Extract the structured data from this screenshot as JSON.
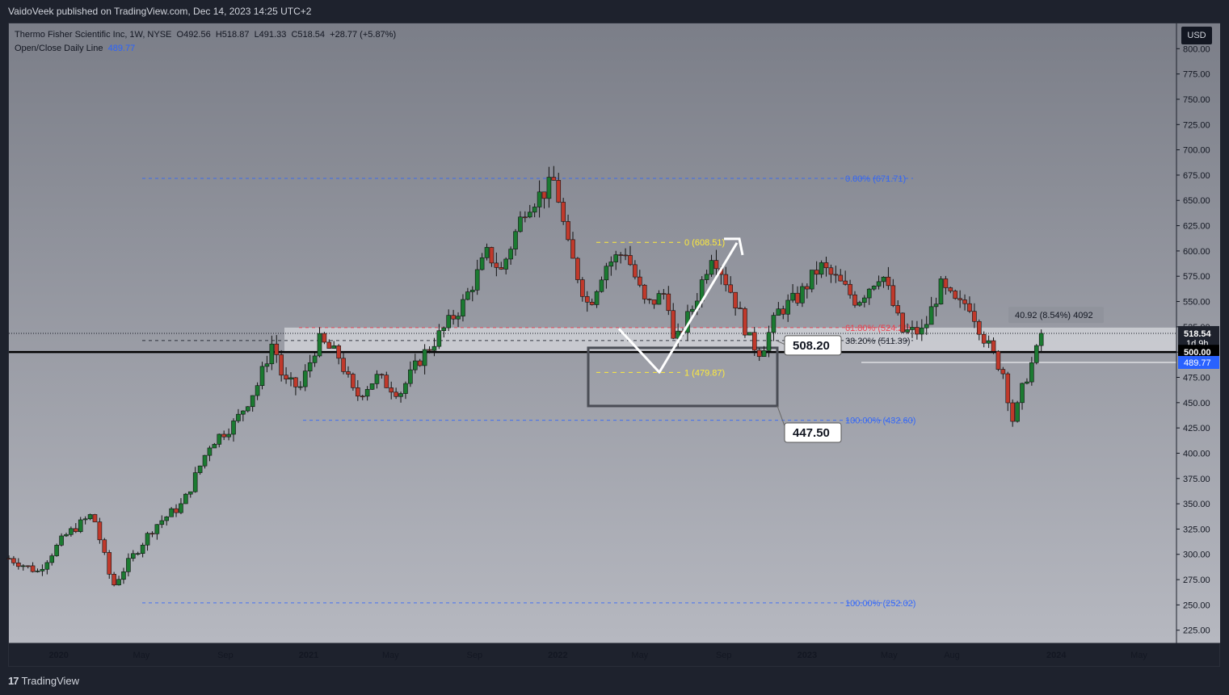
{
  "publish_info": "VaidoVeek published on TradingView.com, Dec 14, 2023 14:25 UTC+2",
  "brand": {
    "logo_mark": "17",
    "name": "TradingView"
  },
  "legend": {
    "symbol_line": "Thermo Fisher Scientific Inc, 1W, NYSE",
    "open": "O492.56",
    "high": "H518.87",
    "low": "L491.33",
    "close": "C518.54",
    "change": "+28.77 (+5.87%)",
    "indicator_name": "Open/Close Daily Line",
    "indicator_value": "489.77"
  },
  "currency_button": "USD",
  "colors": {
    "up": "#26a69a",
    "up_body": "#1b7a31",
    "down": "#c0392b",
    "fib": "#2962ff",
    "yellow": "#ffeb3b",
    "red_line": "#f23645"
  },
  "chart_data": {
    "type": "candlestick",
    "symbol": "Thermo Fisher Scientific Inc",
    "timeframe": "1W",
    "exchange": "NYSE",
    "currency": "USD",
    "ylim": [
      212,
      825
    ],
    "y_ticks": [
      "225.00",
      "250.00",
      "275.00",
      "300.00",
      "325.00",
      "350.00",
      "375.00",
      "400.00",
      "425.00",
      "450.00",
      "475.00",
      "500.00",
      "525.00",
      "550.00",
      "575.00",
      "600.00",
      "625.00",
      "650.00",
      "675.00",
      "700.00",
      "725.00",
      "750.00",
      "775.00",
      "800.00"
    ],
    "x_ticks": [
      "2020",
      "May",
      "Sep",
      "2021",
      "May",
      "Sep",
      "2022",
      "May",
      "Sep",
      "2023",
      "May",
      "Aug",
      "2024",
      "May"
    ],
    "x_tick_dates": [
      "2020-01-01",
      "2020-05-01",
      "2020-09-01",
      "2021-01-01",
      "2021-05-01",
      "2021-09-01",
      "2022-01-01",
      "2022-05-01",
      "2022-09-01",
      "2023-01-01",
      "2023-05-01",
      "2023-08-01",
      "2024-01-01",
      "2024-05-01"
    ],
    "x_range": [
      "2019-10-20",
      "2024-06-25"
    ],
    "price_path": [
      [
        "2019-10-20",
        296
      ],
      [
        "2019-12-01",
        283
      ],
      [
        "2020-01-10",
        318
      ],
      [
        "2020-02-20",
        340
      ],
      [
        "2020-03-20",
        268
      ],
      [
        "2020-04-10",
        290
      ],
      [
        "2020-05-20",
        328
      ],
      [
        "2020-07-01",
        350
      ],
      [
        "2020-08-10",
        410
      ],
      [
        "2020-09-15",
        430
      ],
      [
        "2020-10-20",
        470
      ],
      [
        "2020-11-10",
        512
      ],
      [
        "2020-11-25",
        470
      ],
      [
        "2020-12-20",
        465
      ],
      [
        "2021-01-15",
        512
      ],
      [
        "2021-02-15",
        495
      ],
      [
        "2021-03-10",
        455
      ],
      [
        "2021-04-10",
        475
      ],
      [
        "2021-05-15",
        460
      ],
      [
        "2021-06-15",
        495
      ],
      [
        "2021-07-15",
        520
      ],
      [
        "2021-08-15",
        548
      ],
      [
        "2021-09-20",
        598
      ],
      [
        "2021-10-10",
        580
      ],
      [
        "2021-11-15",
        645
      ],
      [
        "2021-12-15",
        660
      ],
      [
        "2021-12-28",
        670
      ],
      [
        "2022-01-15",
        605
      ],
      [
        "2022-02-15",
        545
      ],
      [
        "2022-03-10",
        585
      ],
      [
        "2022-04-10",
        600
      ],
      [
        "2022-05-10",
        545
      ],
      [
        "2022-06-10",
        560
      ],
      [
        "2022-06-20",
        505
      ],
      [
        "2022-07-20",
        548
      ],
      [
        "2022-08-15",
        600
      ],
      [
        "2022-09-15",
        555
      ],
      [
        "2022-10-10",
        510
      ],
      [
        "2022-10-25",
        500
      ],
      [
        "2022-11-20",
        540
      ],
      [
        "2022-12-20",
        555
      ],
      [
        "2023-01-20",
        585
      ],
      [
        "2023-02-15",
        570
      ],
      [
        "2023-03-15",
        550
      ],
      [
        "2023-04-20",
        580
      ],
      [
        "2023-05-20",
        520
      ],
      [
        "2023-06-20",
        520
      ],
      [
        "2023-07-15",
        565
      ],
      [
        "2023-08-10",
        545
      ],
      [
        "2023-08-25",
        550
      ],
      [
        "2023-09-20",
        510
      ],
      [
        "2023-10-15",
        480
      ],
      [
        "2023-10-30",
        430
      ],
      [
        "2023-11-15",
        470
      ],
      [
        "2023-12-14",
        518.54
      ]
    ],
    "horizontal_lines": [
      {
        "label": "500.00",
        "value": 500.0,
        "style": "solid-thick",
        "color": "#000000"
      },
      {
        "label": "489.77",
        "value": 489.77,
        "style": "solid-thin",
        "color": "#ffffff"
      },
      {
        "label": "518.54",
        "value": 518.54,
        "style": "dotted",
        "color": "#131722"
      }
    ],
    "fib_levels_blue": [
      {
        "label": "0.00% (671.71)",
        "value": 671.71
      },
      {
        "label": "38.20% (511.39)",
        "value": 511.39,
        "color": "#131722"
      },
      {
        "label": "61.80% (524.21)",
        "value": 524.21,
        "color": "#f23645"
      },
      {
        "label": "100.00% (432.60)",
        "value": 432.6
      },
      {
        "label": "100.00% (252.02)",
        "value": 252.02
      }
    ],
    "fib_levels_yellow": [
      {
        "label": "0 (608.51)",
        "value": 608.51
      },
      {
        "label": "1 (479.87)",
        "value": 479.87
      }
    ],
    "annotations": [
      {
        "label": "508.20",
        "value": 508.2
      },
      {
        "label": "447.50",
        "value": 447.5
      }
    ],
    "measure_label": "40.92 (8.54%) 4092",
    "price_axis_labels": {
      "last_price": "518.54",
      "countdown": "1d 9h",
      "level_500": "500.00",
      "indicator": "489.77"
    }
  }
}
